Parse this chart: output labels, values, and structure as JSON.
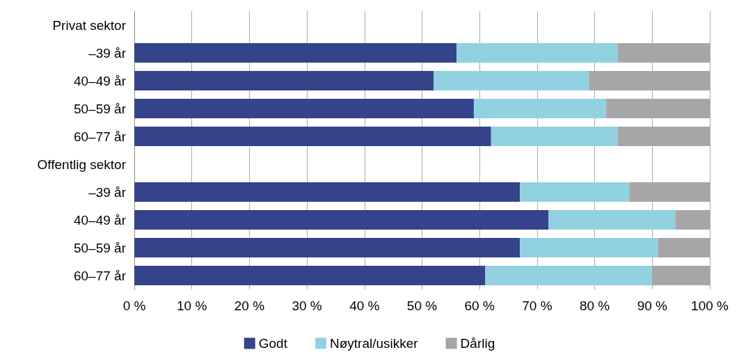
{
  "chart_data": {
    "type": "bar",
    "orientation": "horizontal",
    "stacked": true,
    "categories": [
      "Privat sektor",
      "–39 år",
      "40–49 år",
      "50–59 år",
      "60–77 år",
      "Offentlig sektor",
      "–39 år",
      "40–49 år",
      "50–59 år",
      "60–77 år"
    ],
    "series": [
      {
        "name": "Godt",
        "color": "#34438a",
        "values": [
          null,
          56,
          52,
          59,
          62,
          null,
          67,
          72,
          67,
          61
        ]
      },
      {
        "name": "Nøytral/usikker",
        "color": "#92d1e0",
        "values": [
          null,
          28,
          27,
          23,
          22,
          null,
          19,
          22,
          24,
          29
        ]
      },
      {
        "name": "Dårlig",
        "color": "#a7a5a8",
        "values": [
          null,
          16,
          21,
          18,
          16,
          null,
          14,
          6,
          9,
          10
        ]
      }
    ],
    "xlim": [
      0,
      100
    ],
    "xticks": [
      {
        "value": 0,
        "label": "0 %"
      },
      {
        "value": 10,
        "label": "10 %"
      },
      {
        "value": 20,
        "label": "20 %"
      },
      {
        "value": 30,
        "label": "30 %"
      },
      {
        "value": 40,
        "label": "40 %"
      },
      {
        "value": 50,
        "label": "50 %"
      },
      {
        "value": 60,
        "label": "60 %"
      },
      {
        "value": 70,
        "label": "70 %"
      },
      {
        "value": 80,
        "label": "80 %"
      },
      {
        "value": 90,
        "label": "90 %"
      },
      {
        "value": 100,
        "label": "100 %"
      }
    ],
    "grid": "x",
    "legend": "bottom"
  }
}
